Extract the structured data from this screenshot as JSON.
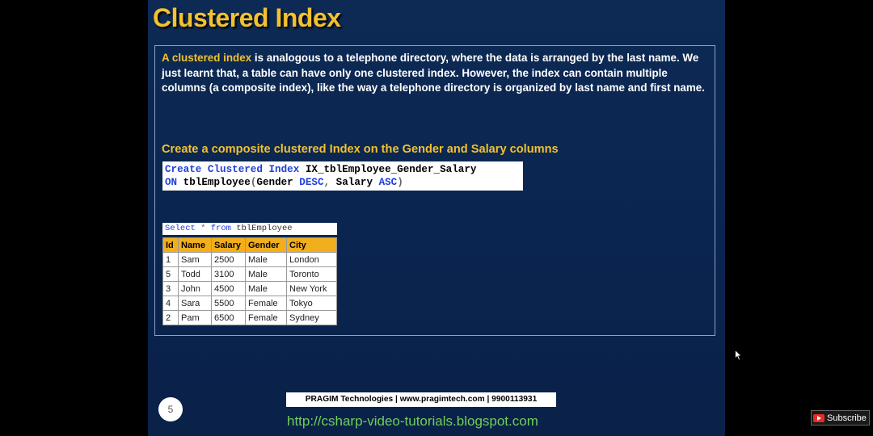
{
  "slide": {
    "title": "Clustered Index",
    "intro_highlight": "A clustered index",
    "intro_rest": " is analogous to a telephone directory, where the data is arranged by the last name. We just learnt that, a table can have only one clustered index. However, the index can contain multiple columns (a composite index), like the way a telephone directory is organized by last name and first name.",
    "subheading": "Create a composite clustered Index on the Gender and Salary columns",
    "code": {
      "l1_kw": "Create Clustered Index",
      "l1_rest": " IX_tblEmployee_Gender_Salary",
      "l2_kw": "ON",
      "l2_a": " tblEmployee",
      "l2_p1": "(",
      "l2_b": "Gender ",
      "l2_desc": "DESC",
      "l2_comma": ",",
      "l2_c": " Salary ",
      "l2_asc": "ASC",
      "l2_p2": ")"
    },
    "query": {
      "select": "Select",
      "star": " * ",
      "from": "from",
      "table": " tblEmployee"
    },
    "table": {
      "headers": [
        "Id",
        "Name",
        "Salary",
        "Gender",
        "City"
      ],
      "rows": [
        [
          "1",
          "Sam",
          "2500",
          "Male",
          "London"
        ],
        [
          "5",
          "Todd",
          "3100",
          "Male",
          "Toronto"
        ],
        [
          "3",
          "John",
          "4500",
          "Male",
          "New York"
        ],
        [
          "4",
          "Sara",
          "5500",
          "Female",
          "Tokyo"
        ],
        [
          "2",
          "Pam",
          "6500",
          "Female",
          "Sydney"
        ]
      ]
    },
    "page_number": "5",
    "footer_company": "PRAGIM Technologies | www.pragimtech.com | 9900113931",
    "footer_url": "http://csharp-video-tutorials.blogspot.com"
  },
  "overlay": {
    "subscribe_label": "Subscribe",
    "subscribe_icon": "youtube-icon",
    "cursor_icon": "mouse-pointer-icon"
  },
  "colors": {
    "title": "#f2c12e",
    "keyword": "#1f3fd8",
    "table_header": "#f2ae1c",
    "footer_url": "#6fcf5a",
    "background": "#0a2550"
  }
}
